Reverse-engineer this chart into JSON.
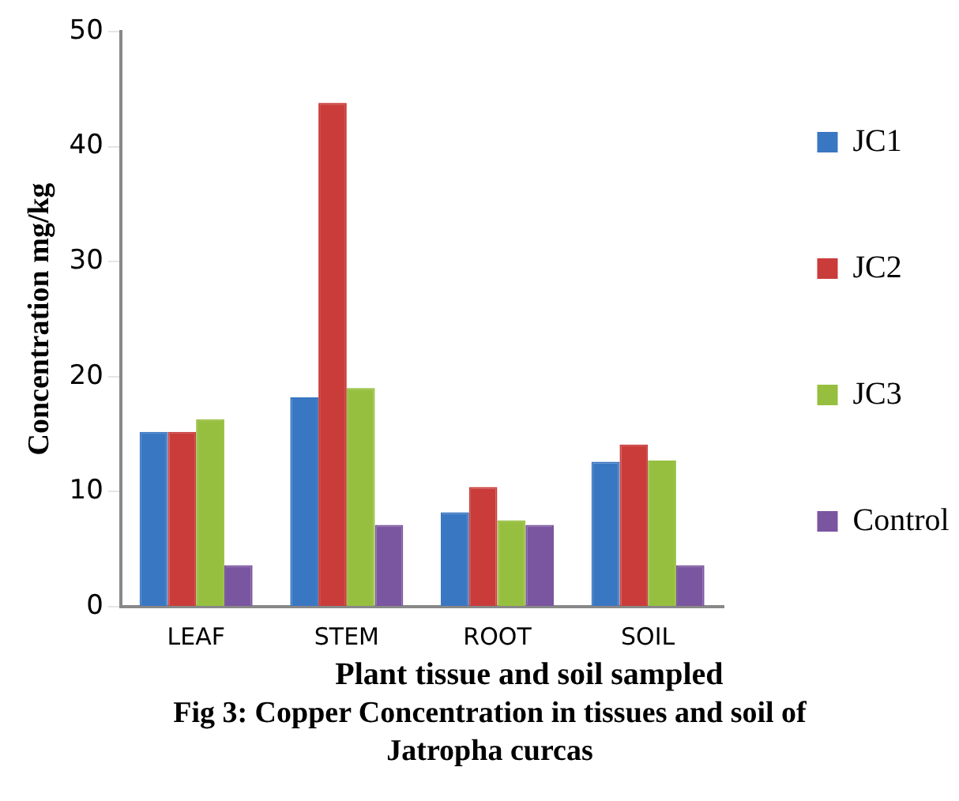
{
  "chart_data": {
    "type": "bar",
    "xlabel": "Plant tissue and soil sampled",
    "ylabel": "Concentration mg/kg",
    "categories": [
      "LEAF",
      "STEM",
      "ROOT",
      "SOIL"
    ],
    "series": [
      {
        "name": "JC1",
        "color": "#3a77c2",
        "values": [
          15.2,
          18.2,
          8.2,
          12.6
        ]
      },
      {
        "name": "JC2",
        "color": "#c93c3a",
        "values": [
          15.2,
          43.8,
          10.4,
          14.1
        ]
      },
      {
        "name": "JC3",
        "color": "#96bf3f",
        "values": [
          16.3,
          19.0,
          7.5,
          12.7
        ]
      },
      {
        "name": "Control",
        "color": "#7a55a0",
        "values": [
          3.6,
          7.1,
          7.1,
          3.6
        ]
      }
    ],
    "ylim": [
      0,
      50
    ],
    "yticks": [
      0,
      10,
      20,
      30,
      40,
      50
    ],
    "grid": false,
    "legend": "right",
    "annotations": [
      "Fig 3: Copper Concentration in tissues and soil of Jatropha curcas"
    ]
  }
}
